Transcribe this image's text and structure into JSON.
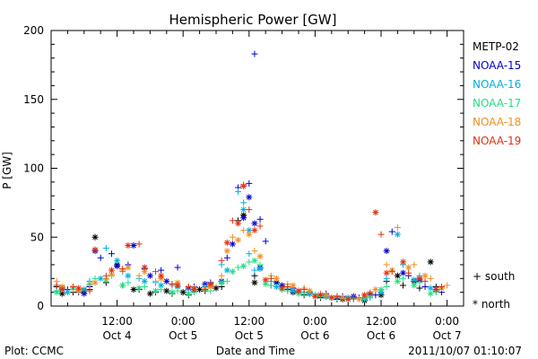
{
  "chart_data": {
    "type": "scatter",
    "title": "Hemispheric Power [GW]",
    "xlabel": "Date and Time",
    "ylabel": "P [GW]",
    "ylim": [
      0,
      200
    ],
    "xlim": [
      0,
      75
    ],
    "y_ticks": [
      0,
      50,
      100,
      150,
      200
    ],
    "x_ticks": [
      {
        "x": 12,
        "time": "12:00",
        "date": "Oct 4"
      },
      {
        "x": 24,
        "time": "0:00",
        "date": "Oct 5"
      },
      {
        "x": 36,
        "time": "12:00",
        "date": "Oct 5"
      },
      {
        "x": 48,
        "time": "0:00",
        "date": "Oct 6"
      },
      {
        "x": 60,
        "time": "12:00",
        "date": "Oct 6"
      },
      {
        "x": 72,
        "time": "0:00",
        "date": "Oct 7"
      }
    ],
    "marker_legend": [
      {
        "label": "south",
        "symbol": "+"
      },
      {
        "label": "north",
        "symbol": "*"
      }
    ],
    "footer_left": "Plot: CCMC",
    "footer_right": "2011/10/07 01:10:07",
    "series": [
      {
        "name": "METP-02",
        "color": "#000000",
        "south": [
          [
            1,
            14
          ],
          [
            4,
            10
          ],
          [
            7,
            12
          ],
          [
            10,
            17
          ],
          [
            13,
            15
          ],
          [
            16,
            12
          ],
          [
            19,
            10
          ],
          [
            22,
            9
          ],
          [
            25,
            8
          ],
          [
            28,
            11
          ],
          [
            31,
            14
          ],
          [
            34,
            62
          ],
          [
            37,
            22
          ],
          [
            40,
            15
          ],
          [
            43,
            12
          ],
          [
            46,
            8
          ],
          [
            49,
            6
          ],
          [
            52,
            5
          ],
          [
            55,
            6
          ],
          [
            58,
            9
          ],
          [
            61,
            18
          ],
          [
            64,
            15
          ],
          [
            67,
            13
          ],
          [
            70,
            14
          ]
        ],
        "north": [
          [
            2,
            9
          ],
          [
            6,
            11
          ],
          [
            8,
            50
          ],
          [
            12,
            30
          ],
          [
            15,
            12
          ],
          [
            18,
            9
          ],
          [
            21,
            11
          ],
          [
            24,
            10
          ],
          [
            27,
            12
          ],
          [
            30,
            13
          ],
          [
            35,
            66
          ],
          [
            37,
            17
          ],
          [
            41,
            17
          ],
          [
            44,
            10
          ],
          [
            47,
            9
          ],
          [
            50,
            7
          ],
          [
            53,
            5
          ],
          [
            57,
            4
          ],
          [
            60,
            8
          ],
          [
            63,
            22
          ],
          [
            66,
            18
          ],
          [
            69,
            32
          ],
          [
            71,
            13
          ]
        ]
      },
      {
        "name": "NOAA-15",
        "color": "#0000cc",
        "south": [
          [
            3,
            12
          ],
          [
            5,
            10
          ],
          [
            7,
            14
          ],
          [
            9,
            35
          ],
          [
            11,
            38
          ],
          [
            14,
            30
          ],
          [
            17,
            27
          ],
          [
            20,
            26
          ],
          [
            23,
            28
          ],
          [
            26,
            14
          ],
          [
            29,
            17
          ],
          [
            32,
            35
          ],
          [
            34,
            86
          ],
          [
            36,
            89
          ],
          [
            37,
            183
          ],
          [
            38,
            63
          ],
          [
            39,
            47
          ],
          [
            41,
            17
          ],
          [
            44,
            13
          ],
          [
            47,
            10
          ],
          [
            50,
            9
          ],
          [
            53,
            7
          ],
          [
            56,
            6
          ],
          [
            59,
            8
          ],
          [
            62,
            54
          ],
          [
            65,
            22
          ],
          [
            68,
            14
          ],
          [
            71,
            10
          ]
        ],
        "north": [
          [
            2,
            13
          ],
          [
            6,
            9
          ],
          [
            8,
            40
          ],
          [
            12,
            29
          ],
          [
            15,
            44
          ],
          [
            18,
            22
          ],
          [
            21,
            18
          ],
          [
            25,
            13
          ],
          [
            28,
            16
          ],
          [
            31,
            18
          ],
          [
            33,
            45
          ],
          [
            35,
            64
          ],
          [
            36,
            79
          ],
          [
            37,
            60
          ],
          [
            38,
            28
          ],
          [
            42,
            15
          ],
          [
            45,
            11
          ],
          [
            49,
            8
          ],
          [
            52,
            6
          ],
          [
            55,
            7
          ],
          [
            58,
            9
          ],
          [
            61,
            40
          ],
          [
            64,
            24
          ],
          [
            67,
            19
          ],
          [
            70,
            12
          ]
        ]
      },
      {
        "name": "NOAA-16",
        "color": "#00b0e0",
        "south": [
          [
            1,
            11
          ],
          [
            4,
            14
          ],
          [
            7,
            18
          ],
          [
            10,
            42
          ],
          [
            13,
            25
          ],
          [
            16,
            20
          ],
          [
            19,
            17
          ],
          [
            22,
            15
          ],
          [
            25,
            12
          ],
          [
            28,
            14
          ],
          [
            31,
            30
          ],
          [
            34,
            83
          ],
          [
            35,
            75
          ],
          [
            36,
            38
          ],
          [
            37,
            26
          ],
          [
            40,
            18
          ],
          [
            43,
            13
          ],
          [
            46,
            10
          ],
          [
            49,
            7
          ],
          [
            52,
            6
          ],
          [
            55,
            5
          ],
          [
            58,
            6
          ],
          [
            61,
            20
          ],
          [
            64,
            30
          ],
          [
            67,
            22
          ],
          [
            70,
            11
          ]
        ],
        "north": [
          [
            3,
            10
          ],
          [
            6,
            12
          ],
          [
            9,
            20
          ],
          [
            12,
            33
          ],
          [
            14,
            22
          ],
          [
            17,
            18
          ],
          [
            20,
            15
          ],
          [
            23,
            14
          ],
          [
            26,
            11
          ],
          [
            29,
            15
          ],
          [
            32,
            26
          ],
          [
            35,
            70
          ],
          [
            36,
            55
          ],
          [
            38,
            27
          ],
          [
            41,
            14
          ],
          [
            44,
            11
          ],
          [
            47,
            9
          ],
          [
            50,
            7
          ],
          [
            54,
            6
          ],
          [
            57,
            5
          ],
          [
            60,
            10
          ],
          [
            63,
            52
          ],
          [
            66,
            19
          ],
          [
            69,
            13
          ]
        ]
      },
      {
        "name": "NOAA-17",
        "color": "#20e080",
        "south": [
          [
            2,
            12
          ],
          [
            5,
            11
          ],
          [
            8,
            20
          ],
          [
            11,
            22
          ],
          [
            14,
            17
          ],
          [
            17,
            14
          ],
          [
            20,
            12
          ],
          [
            23,
            11
          ],
          [
            26,
            10
          ],
          [
            29,
            11
          ],
          [
            32,
            18
          ],
          [
            34,
            28
          ],
          [
            36,
            32
          ],
          [
            38,
            30
          ],
          [
            40,
            15
          ],
          [
            43,
            11
          ],
          [
            46,
            9
          ],
          [
            49,
            7
          ],
          [
            52,
            6
          ],
          [
            55,
            5
          ],
          [
            58,
            7
          ],
          [
            61,
            14
          ],
          [
            64,
            20
          ],
          [
            67,
            17
          ],
          [
            70,
            10
          ]
        ],
        "north": [
          [
            1,
            10
          ],
          [
            4,
            13
          ],
          [
            7,
            16
          ],
          [
            10,
            19
          ],
          [
            13,
            15
          ],
          [
            16,
            13
          ],
          [
            19,
            11
          ],
          [
            22,
            10
          ],
          [
            25,
            9
          ],
          [
            28,
            12
          ],
          [
            31,
            17
          ],
          [
            33,
            25
          ],
          [
            35,
            29
          ],
          [
            37,
            33
          ],
          [
            39,
            16
          ],
          [
            42,
            12
          ],
          [
            45,
            9
          ],
          [
            48,
            8
          ],
          [
            51,
            6
          ],
          [
            54,
            5
          ],
          [
            57,
            6
          ],
          [
            60,
            12
          ],
          [
            63,
            18
          ],
          [
            66,
            15
          ],
          [
            69,
            9
          ]
        ]
      },
      {
        "name": "NOAA-18",
        "color": "#f09020",
        "south": [
          [
            1,
            18
          ],
          [
            4,
            12
          ],
          [
            7,
            15
          ],
          [
            10,
            20
          ],
          [
            13,
            26
          ],
          [
            16,
            22
          ],
          [
            19,
            18
          ],
          [
            22,
            16
          ],
          [
            25,
            14
          ],
          [
            28,
            13
          ],
          [
            31,
            22
          ],
          [
            33,
            50
          ],
          [
            35,
            55
          ],
          [
            37,
            40
          ],
          [
            40,
            22
          ],
          [
            43,
            16
          ],
          [
            46,
            13
          ],
          [
            49,
            9
          ],
          [
            52,
            7
          ],
          [
            55,
            6
          ],
          [
            58,
            10
          ],
          [
            61,
            30
          ],
          [
            63,
            57
          ],
          [
            66,
            30
          ],
          [
            69,
            20
          ],
          [
            72,
            15
          ]
        ],
        "north": [
          [
            2,
            14
          ],
          [
            5,
            11
          ],
          [
            8,
            17
          ],
          [
            11,
            23
          ],
          [
            14,
            28
          ],
          [
            17,
            25
          ],
          [
            20,
            20
          ],
          [
            23,
            17
          ],
          [
            26,
            13
          ],
          [
            29,
            14
          ],
          [
            32,
            40
          ],
          [
            34,
            48
          ],
          [
            36,
            52
          ],
          [
            38,
            36
          ],
          [
            41,
            20
          ],
          [
            44,
            15
          ],
          [
            47,
            11
          ],
          [
            50,
            8
          ],
          [
            53,
            6
          ],
          [
            56,
            5
          ],
          [
            59,
            12
          ],
          [
            62,
            26
          ],
          [
            65,
            28
          ],
          [
            68,
            22
          ],
          [
            71,
            13
          ]
        ]
      },
      {
        "name": "NOAA-19",
        "color": "#e03010",
        "south": [
          [
            1,
            15
          ],
          [
            4,
            14
          ],
          [
            7,
            11
          ],
          [
            10,
            22
          ],
          [
            13,
            27
          ],
          [
            16,
            45
          ],
          [
            19,
            25
          ],
          [
            22,
            16
          ],
          [
            25,
            14
          ],
          [
            28,
            12
          ],
          [
            31,
            33
          ],
          [
            33,
            62
          ],
          [
            35,
            88
          ],
          [
            36,
            70
          ],
          [
            38,
            58
          ],
          [
            40,
            20
          ],
          [
            43,
            14
          ],
          [
            46,
            12
          ],
          [
            49,
            8
          ],
          [
            52,
            7
          ],
          [
            55,
            6
          ],
          [
            58,
            9
          ],
          [
            60,
            52
          ],
          [
            62,
            25
          ],
          [
            65,
            24
          ],
          [
            68,
            18
          ],
          [
            71,
            14
          ]
        ],
        "north": [
          [
            2,
            12
          ],
          [
            5,
            13
          ],
          [
            8,
            41
          ],
          [
            11,
            26
          ],
          [
            14,
            44
          ],
          [
            17,
            28
          ],
          [
            20,
            22
          ],
          [
            23,
            15
          ],
          [
            26,
            12
          ],
          [
            29,
            16
          ],
          [
            32,
            46
          ],
          [
            34,
            60
          ],
          [
            35,
            87
          ],
          [
            37,
            55
          ],
          [
            39,
            19
          ],
          [
            42,
            13
          ],
          [
            45,
            11
          ],
          [
            48,
            7
          ],
          [
            51,
            6
          ],
          [
            54,
            5
          ],
          [
            57,
            8
          ],
          [
            59,
            68
          ],
          [
            61,
            24
          ],
          [
            64,
            32
          ],
          [
            67,
            20
          ],
          [
            70,
            12
          ]
        ]
      }
    ]
  }
}
